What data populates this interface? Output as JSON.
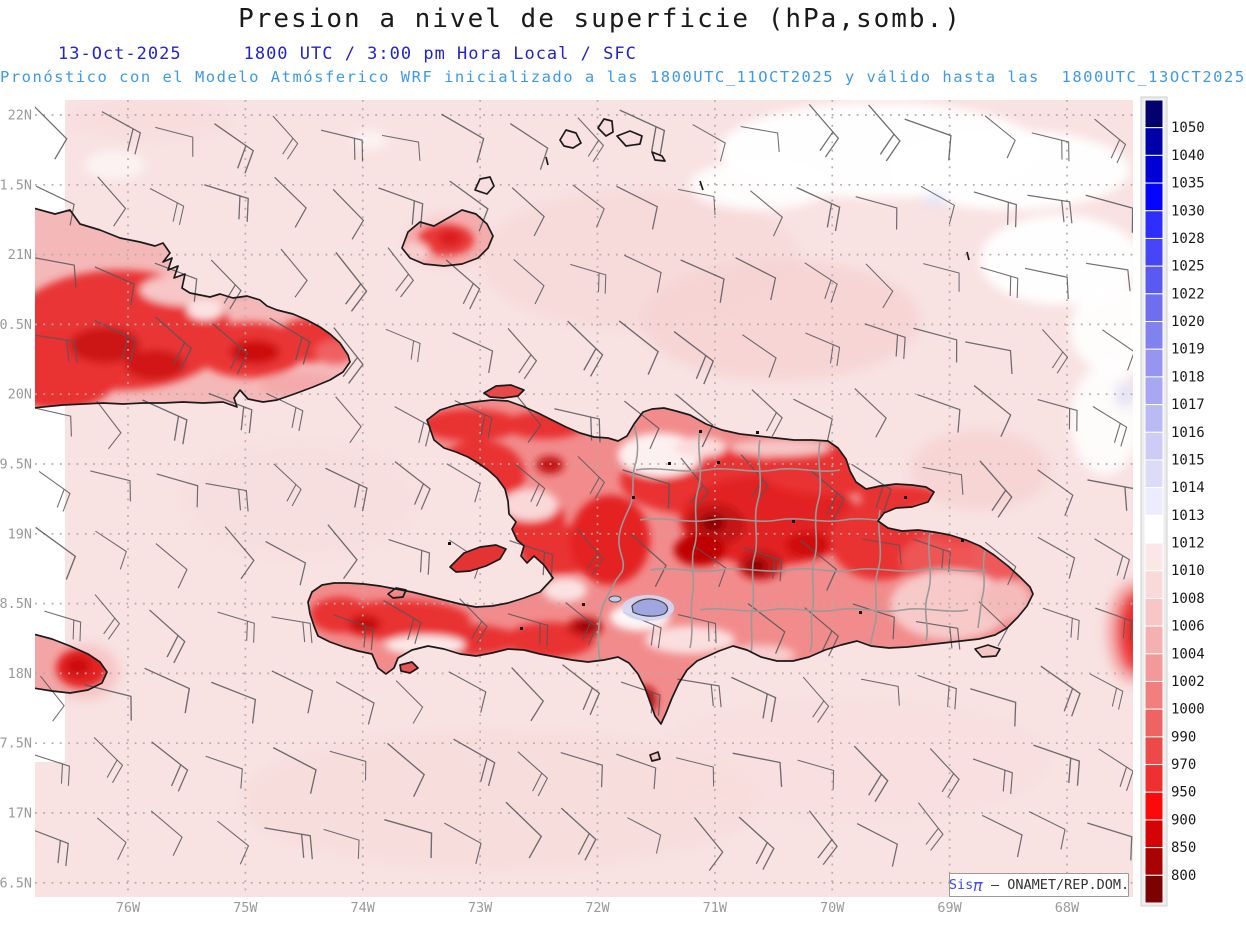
{
  "header": {
    "title": "Presion a nivel de superficie (hPa,somb.)",
    "date": "13-Oct-2025",
    "time": "1800 UTC / 3:00 pm Hora Local / SFC",
    "forecast": "Pronóstico con el Modelo Atmósferico WRF inicializado a las 1800UTC_11OCT2025 y válido hasta las  1800UTC_13OCT2025"
  },
  "axes": {
    "x_labels": [
      "76W",
      "75W",
      "74W",
      "73W",
      "72W",
      "71W",
      "70W",
      "69W",
      "68W"
    ],
    "y_labels": [
      "22N",
      "1.5N",
      "21N",
      "0.5N",
      "20N",
      "9.5N",
      "19N",
      "8.5N",
      "18N",
      "7.5N",
      "17N",
      "6.5N"
    ]
  },
  "colorbar": {
    "labels": [
      "1050",
      "1040",
      "1035",
      "1030",
      "1028",
      "1025",
      "1022",
      "1020",
      "1019",
      "1018",
      "1017",
      "1016",
      "1015",
      "1014",
      "1013",
      "1012",
      "1010",
      "1008",
      "1006",
      "1004",
      "1002",
      "1000",
      "990",
      "970",
      "950",
      "900",
      "850",
      "800"
    ],
    "colors": [
      "#02026e",
      "#0000a8",
      "#0000d6",
      "#0404ff",
      "#2e2eff",
      "#4646f8",
      "#5a5af2",
      "#6e6eee",
      "#8282ee",
      "#9696f0",
      "#a8a8f2",
      "#babaf4",
      "#ccccf6",
      "#dcdcf9",
      "#ececfc",
      "#ffffff",
      "#fbe7e7",
      "#f9d9d9",
      "#f7c7c7",
      "#f5b1b1",
      "#f39999",
      "#f17f7f",
      "#ef6363",
      "#ed4949",
      "#ee3030",
      "#fa0a0a",
      "#d40404",
      "#a80202",
      "#7c0202"
    ]
  },
  "brand": {
    "name_prefix": "Sis",
    "name_symbol": "π",
    "separator": " – ",
    "org": "ONAMET/REP.DOM."
  },
  "colors": {
    "ocean_base": "#f9e2e2",
    "deep_pink": "#f6d4d4",
    "white_patch": "#ffffff",
    "land_base": "#f28c8c",
    "red_strong": "#e93030",
    "red_dark": "#c41212",
    "red_darkest": "#8f0000",
    "lake_blue": "#9fa6e0",
    "lake_halo": "#d4d7f2",
    "coastline": "#1a1a1a",
    "province_border": "#9a9a9a",
    "gridline": "#b5abab",
    "axis_label": "#9a9a9a",
    "colorbar_label": "#1a1a1a",
    "wind_barb": "#55555c",
    "title_text": "#1a1a1a",
    "subtitle_blue": "#2323d2",
    "forecast_blue": "#3e9ae4"
  },
  "chart_data": {
    "type": "heatmap",
    "title": "Presion a nivel de superficie (hPa,somb.)",
    "units": "hPa",
    "x_tick_labels": [
      "76W",
      "75W",
      "74W",
      "73W",
      "72W",
      "71W",
      "70W",
      "69W",
      "68W"
    ],
    "y_tick_labels": [
      "22N",
      "1.5N",
      "21N",
      "0.5N",
      "20N",
      "9.5N",
      "19N",
      "8.5N",
      "18N",
      "7.5N",
      "17N",
      "6.5N"
    ],
    "colorbar_levels": [
      1050,
      1040,
      1035,
      1030,
      1028,
      1025,
      1022,
      1020,
      1019,
      1018,
      1017,
      1016,
      1015,
      1014,
      1013,
      1012,
      1010,
      1008,
      1006,
      1004,
      1002,
      1000,
      990,
      970,
      950,
      900,
      850,
      800
    ],
    "colorbar_colors": [
      "#02026e",
      "#0000a8",
      "#0000d6",
      "#0404ff",
      "#2e2eff",
      "#4646f8",
      "#5a5af2",
      "#6e6eee",
      "#8282ee",
      "#9696f0",
      "#a8a8f2",
      "#babaf4",
      "#ccccf6",
      "#dcdcf9",
      "#ececfc",
      "#ffffff",
      "#fbe7e7",
      "#f9d9d9",
      "#f7c7c7",
      "#f5b1b1",
      "#f39999",
      "#f17f7f",
      "#ef6363",
      "#ed4949",
      "#ee3030",
      "#fa0a0a",
      "#d40404",
      "#a80202",
      "#7c0202"
    ],
    "legend_position": "right",
    "grid": true,
    "overlays": [
      "coastlines",
      "province-borders",
      "wind-barbs"
    ],
    "value_range_ocean_hpa": [
      1008,
      1013
    ],
    "value_range_land_hpa": [
      800,
      1008
    ]
  }
}
